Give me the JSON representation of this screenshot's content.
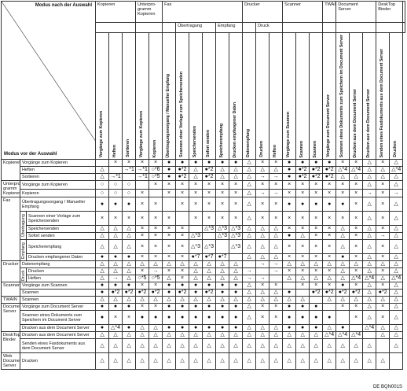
{
  "corner": {
    "top": "Modus nach der Auswahl",
    "bottom": "Modus vor der Auswahl"
  },
  "groups": [
    {
      "label": "Kopieren"
    },
    {
      "label": "Unterpro-\ngramm\nKopieren"
    },
    {
      "label": "Fax"
    },
    {
      "label": "Drucker"
    },
    {
      "label": "Scanner"
    },
    {
      "label": "TWAIN"
    },
    {
      "label": "Document\nServer"
    },
    {
      "label": "DeskTop\nBinder"
    },
    {
      "label": "Web\nDocu-\nment\nServer"
    }
  ],
  "subgroups": {
    "uebertragung": "Übertragung",
    "empfang": "Empfang",
    "druck": "Druck"
  },
  "columns": [
    "Vorgänge zum Kopieren",
    "Heften",
    "Sortieren",
    "Vorgänge zum Kopieren",
    "Kopieren",
    "Übertragungsvorgang / Manueller Empfang",
    "Scannen einer Vorlage zum Speichersenden",
    "Speichersenden",
    "Sofort senden",
    "Speicherempfang",
    "Drucken empfangener Daten",
    "Datenempfang",
    "Drucken",
    "Heften",
    "Vorgänge zum Scannen",
    "Scannen",
    "Scannen",
    "Vorgänge zum Document Server",
    "Scannen eines Dokuments zum Speichern im Document Server",
    "Drucken aus dem Document Server",
    "Drucken aus dem Document Server",
    "Senden eines Faxdokuments aus dem Document Server",
    "Drucken"
  ],
  "rows": [
    {
      "group": "Kopieren",
      "label": "Vorgänge zum Kopieren",
      "cells": [
        "",
        "×",
        "×",
        "×",
        "×",
        "●",
        "●",
        "●",
        "●",
        "●",
        "●",
        "△",
        "×",
        "×",
        "●",
        "●",
        "●",
        "●",
        "×",
        "×",
        "△",
        "×",
        "△"
      ]
    },
    {
      "group": "",
      "label": "Heften",
      "cells": [
        "△",
        "",
        "→*1",
        "→*1",
        "○*6",
        "●",
        "●*2",
        "△",
        "●*2",
        "△",
        "△",
        "△",
        "△",
        "△",
        "●",
        "●*2",
        "●*2",
        "●*2",
        "△*4",
        "△*4",
        "△",
        "△",
        "△*4"
      ]
    },
    {
      "group": "",
      "label": "Sortieren",
      "cells": [
        "△",
        "→*1",
        "",
        "→*1",
        "○*5",
        "●",
        "●*2",
        "△",
        "●*2",
        "△",
        "△",
        "△",
        "→",
        "→",
        "●",
        "●*2",
        "●*2",
        "●*2",
        "△",
        "△",
        "△",
        "△",
        "△"
      ]
    },
    {
      "group": "Unterpro-\ngramm\nKopieren",
      "label": "Vorgänge zum Kopieren",
      "cells": [
        "○",
        "○",
        "○",
        "",
        "×",
        "×",
        "×",
        "×",
        "×",
        "×",
        "×",
        "△",
        "×",
        "×",
        "×",
        "×",
        "×",
        "×",
        "×",
        "×",
        "△",
        "×",
        "△"
      ]
    },
    {
      "group": "",
      "label": "Kopieren",
      "cells": [
        "○",
        "○",
        "○",
        "×",
        "",
        "×",
        "×",
        "×",
        "×",
        "×",
        "×",
        "△",
        "→",
        "→",
        "×",
        "×",
        "×",
        "×",
        "×",
        "×",
        "→",
        "×",
        "→"
      ]
    },
    {
      "group": "Fax",
      "label": "Übertragungsvorgang / Manueller Empfang",
      "cells": [
        "●",
        "●",
        "●",
        "×",
        "×",
        "",
        "×",
        "×",
        "×",
        "×",
        "×",
        "△",
        "×",
        "×",
        "●",
        "●",
        "●",
        "●",
        "●",
        "×",
        "△",
        "×",
        "△"
      ]
    },
    {
      "group": "",
      "label": "Scannen einer Vorlage zum Speichersenden",
      "cells": [
        "×",
        "×",
        "×",
        "×",
        "×",
        "×",
        "",
        "×",
        "×",
        "×",
        "×",
        "△",
        "×",
        "×",
        "×",
        "×",
        "×",
        "×",
        "×",
        "×",
        "△",
        "×",
        "△"
      ]
    },
    {
      "group": "",
      "label": "Speichersenden",
      "cells": [
        "△",
        "△",
        "△",
        "×",
        "×",
        "×",
        "×",
        "",
        "△*3",
        "△*3",
        "△*3",
        "△",
        "△",
        "△",
        "×",
        "×",
        "×",
        "×",
        "△",
        "×",
        "△",
        "×",
        "△"
      ]
    },
    {
      "group": "",
      "label": "Sofort senden",
      "cells": [
        "△",
        "△",
        "△",
        "×",
        "×",
        "×",
        "×",
        "△*3",
        "",
        "△*3",
        "△*3",
        "△",
        "△",
        "△",
        "●",
        "△",
        "×",
        "×",
        "△",
        "×",
        "△",
        "→",
        "△"
      ]
    },
    {
      "group": "",
      "label": "Speicherempfang",
      "cells": [
        "△",
        "△",
        "△",
        "×",
        "×",
        "×",
        "×",
        "△*3",
        "△*3",
        "",
        "△*3",
        "△",
        "△",
        "△",
        "×",
        "×",
        "×",
        "×",
        "△",
        "×",
        "△",
        "×",
        "△"
      ]
    },
    {
      "group": "",
      "label": "Drucken empfangener Daten",
      "cells": [
        "●",
        "●",
        "●",
        "×",
        "×",
        "×",
        "×",
        "●*7",
        "●*7",
        "●*7",
        "",
        "△",
        "△",
        "△",
        "×",
        "×",
        "×",
        "×",
        "●",
        "×",
        "△",
        "×",
        "△"
      ]
    },
    {
      "group": "Drucker",
      "label": "Datenempfang",
      "cells": [
        "△",
        "△",
        "△",
        "△",
        "△",
        "△",
        "△",
        "△",
        "△",
        "△",
        "△",
        "",
        "→",
        "→",
        "△",
        "△",
        "△",
        "△",
        "△",
        "△",
        "△",
        "△",
        "△"
      ]
    },
    {
      "group": "",
      "label": "Drucken",
      "cells": [
        "△",
        "△",
        "△",
        "×",
        "→",
        "×",
        "×",
        "△",
        "△",
        "△",
        "△",
        "→",
        "",
        "→",
        "×",
        "×",
        "×",
        "×",
        "△",
        "×",
        "△",
        "×",
        "△"
      ]
    },
    {
      "group": "",
      "label": "Heften",
      "cells": [
        "△",
        "→",
        "△",
        "○*5",
        "○*5",
        "△",
        "×",
        "△",
        "△",
        "△",
        "△",
        "→",
        "→",
        "",
        "△",
        "△",
        "△",
        "△",
        "△",
        "△*4",
        "△*4",
        "△",
        "△*4"
      ]
    },
    {
      "group": "Scanner",
      "label": "Vorgänge zum Scannen",
      "cells": [
        "●",
        "●",
        "●",
        "×",
        "×",
        "●",
        "●",
        "●",
        "●",
        "●",
        "●",
        "△",
        "×",
        "×",
        "",
        "×",
        "×",
        "×",
        "●",
        "×",
        "△",
        "×",
        "△"
      ]
    },
    {
      "group": "",
      "label": "Scannen",
      "cells": [
        "●",
        "●*2",
        "●*2",
        "●*2",
        "●*2",
        "●",
        "●*2",
        "●",
        "●*2",
        "●",
        "●",
        "△",
        "△",
        "△",
        "●",
        "",
        "●*2",
        "●*2",
        "●*2",
        "●*2",
        "△",
        "●*2",
        "△"
      ]
    },
    {
      "group": "TWAIN",
      "label": "Scannen",
      "cells": [
        "△",
        "△",
        "△",
        "△",
        "△",
        "△",
        "△",
        "△",
        "△",
        "△",
        "△",
        "△",
        "△",
        "△",
        "△",
        "△",
        "",
        "△",
        "△",
        "△",
        "△",
        "△",
        "△"
      ]
    },
    {
      "group": "Document\nServer",
      "label": "Vorgänge zum Document Server",
      "cells": [
        "●",
        "●",
        "●",
        "×",
        "×",
        "●",
        "●",
        "●",
        "●",
        "●",
        "●",
        "△",
        "×",
        "×",
        "●",
        "●",
        "●",
        "",
        "×",
        "×",
        "△",
        "×",
        "△"
      ]
    },
    {
      "group": "",
      "label": "Scannen eines Dokuments zum Speichern im Document Server",
      "cells": [
        "●",
        "×",
        "×",
        "●",
        "●",
        "●",
        "●",
        "●",
        "●",
        "●",
        "●",
        "△",
        "×",
        "×",
        "●",
        "●",
        "●",
        "●",
        "",
        "×",
        "△",
        "×",
        "△"
      ]
    },
    {
      "group": "",
      "label": "Drucken aus dem Document Server",
      "cells": [
        "●",
        "△*4",
        "●",
        "△",
        "△",
        "●",
        "●",
        "●",
        "●",
        "●",
        "●",
        "△",
        "△",
        "△",
        "●",
        "●",
        "●",
        "△",
        "●",
        "",
        "△*4",
        "△",
        "△"
      ]
    },
    {
      "group": "DeskTop\nBinder",
      "label": "Drucken aus dem Document Server",
      "cells": [
        "△",
        "△",
        "△",
        "△",
        "△",
        "△",
        "△",
        "△",
        "△",
        "△",
        "△",
        "△",
        "△",
        "△",
        "△",
        "△",
        "△",
        "△*4",
        "△*4",
        "△*4",
        "",
        "△",
        "△"
      ]
    },
    {
      "group": "",
      "label": "Senden eines Faxdokuments aus dem Document Server",
      "cells": [
        "△",
        "△",
        "△",
        "△",
        "△",
        "△",
        "△",
        "△",
        "△",
        "△",
        "△",
        "△",
        "△",
        "△",
        "△",
        "△",
        "△",
        "△",
        "△",
        "△",
        "△",
        "",
        "△"
      ]
    },
    {
      "group": "Web\nDocument\nServer",
      "label": "Drucken",
      "cells": [
        "△",
        "△",
        "△",
        "△",
        "△",
        "△",
        "△",
        "△",
        "△",
        "△",
        "△",
        "△",
        "△",
        "△",
        "△",
        "△",
        "△",
        "△",
        "△",
        "△",
        "△",
        "△",
        ""
      ]
    }
  ],
  "footer": "DE BQN001S"
}
